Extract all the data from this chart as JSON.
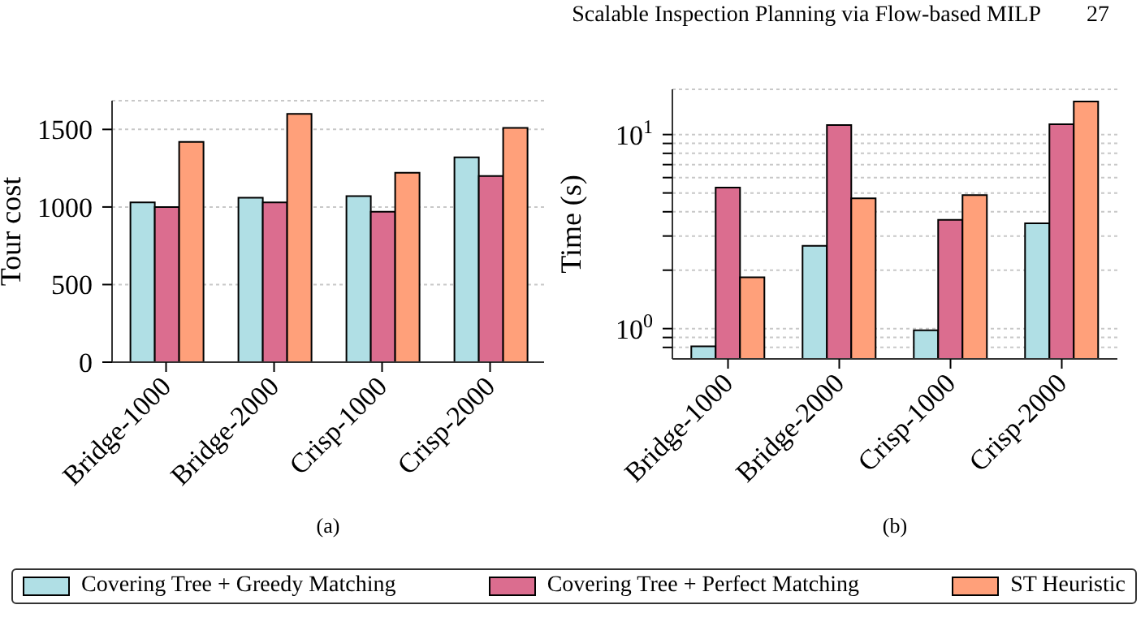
{
  "chart_data": [
    {
      "type": "bar",
      "ylabel": "Tour cost",
      "categories": [
        "Bridge-1000",
        "Bridge-2000",
        "Crisp-1000",
        "Crisp-2000"
      ],
      "series": [
        {
          "name": "Covering Tree + Greedy Matching",
          "color": "#b0dfe5",
          "values": [
            1030,
            1060,
            1070,
            1320
          ]
        },
        {
          "name": "Covering Tree + Perfect Matching",
          "color": "#db6d8f",
          "values": [
            1000,
            1030,
            970,
            1200
          ]
        },
        {
          "name": "ST Heuristic",
          "color": "#ffa07a",
          "values": [
            1420,
            1600,
            1220,
            1510
          ]
        }
      ],
      "ylim": [
        0,
        1685
      ],
      "yticks": [
        0,
        500,
        1000,
        1500
      ],
      "grid": "y",
      "legend": "bottom",
      "annotations": [
        "Scalable Inspection Planning via Flow-based MILP",
        "27",
        "(a)"
      ]
    },
    {
      "type": "bar",
      "ylabel": "Time (s)",
      "categories": [
        "Bridge-1000",
        "Bridge-2000",
        "Crisp-1000",
        "Crisp-2000"
      ],
      "series": [
        {
          "color": "#b0dfe5",
          "values": [
            0.81,
            2.67,
            0.98,
            3.49
          ]
        },
        {
          "color": "#db6d8f",
          "values": [
            5.33,
            11.2,
            3.63,
            11.3
          ]
        },
        {
          "color": "#ffa07a",
          "values": [
            1.84,
            4.69,
            4.88,
            14.8
          ]
        }
      ],
      "log": true,
      "ylim": [
        0.698,
        17.1
      ],
      "yticks": [
        {
          "value": 0.8,
          "label": null
        },
        {
          "value": 0.9,
          "label": null
        },
        {
          "value": 1,
          "label": "10$^{0}$"
        },
        {
          "value": 2,
          "label": null
        },
        {
          "value": 3,
          "label": null
        },
        {
          "value": 4,
          "label": null
        },
        {
          "value": 5,
          "label": null
        },
        {
          "value": 6,
          "label": null
        },
        {
          "value": 7,
          "label": null
        },
        {
          "value": 8,
          "label": null
        },
        {
          "value": 9,
          "label": null
        },
        {
          "value": 10,
          "label": "10$^{1}$"
        }
      ],
      "grid": "y",
      "annotations": [
        "(b)"
      ]
    }
  ]
}
